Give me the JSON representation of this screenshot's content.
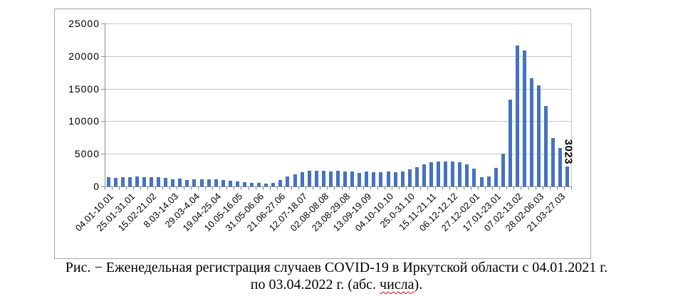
{
  "chart_data": {
    "type": "bar",
    "title": "",
    "xlabel": "",
    "ylabel": "",
    "ylim": [
      0,
      25000
    ],
    "grid": true,
    "legend": null,
    "y_tick_labels": [
      "0",
      "5000",
      "10000",
      "15000",
      "20000",
      "25000"
    ],
    "y_tick_values": [
      0,
      5000,
      10000,
      15000,
      20000,
      25000
    ],
    "x_tick_label_spacing": 3,
    "categories": [
      "04.01-10.01",
      "25.01-31.01",
      "15.02-21.02",
      "8.03-14.03",
      "29.03-4.04",
      "19.04-25.04",
      "10.05-16.05",
      "31.05-06.06",
      "21.06-27.06",
      "12.07-18.07",
      "02.08-08.08",
      "23.08-29.08",
      "13.09-19.09",
      "04.10-10.10",
      "25.0-31.10",
      "15.11-21.11",
      "06.12-12.12",
      "27.12-02.01",
      "17.01-23.01",
      "07.02-13.02",
      "28.02-06.03",
      "21.03-27.03"
    ],
    "values": [
      1450,
      1350,
      1400,
      1450,
      1500,
      1400,
      1450,
      1380,
      1280,
      1100,
      1180,
      1000,
      1120,
      1050,
      1120,
      1050,
      980,
      900,
      800,
      700,
      600,
      500,
      430,
      600,
      950,
      1500,
      1900,
      2200,
      2350,
      2350,
      2350,
      2250,
      2350,
      2250,
      2320,
      2100,
      2250,
      2200,
      2200,
      2250,
      2200,
      2320,
      2600,
      2950,
      3400,
      3700,
      3800,
      3800,
      3800,
      3700,
      3400,
      2700,
      1400,
      1500,
      2800,
      5000,
      13300,
      21600,
      20800,
      16600,
      15500,
      12300,
      7400,
      5900,
      3023
    ],
    "last_bar_label": "3023"
  },
  "colors": {
    "bar": "#4472c4",
    "gridline": "#c6c6c6",
    "axis": "#8c8c8c",
    "frame_border": "#a6a6a6",
    "spellcheck": "#e00000"
  },
  "caption": {
    "line1": "Рис. − Еженедельная регистрация случаев COVID-19 в Иркутской области с 04.01.2021 г.",
    "line2_prefix": "по 03.04.2022 г. (абс. ",
    "line2_word": "числа",
    "line2_suffix": ")."
  }
}
